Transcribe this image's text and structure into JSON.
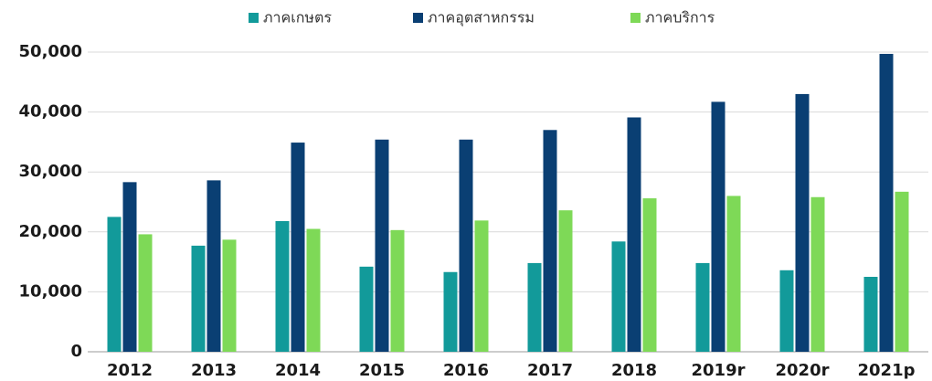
{
  "chart_data": {
    "type": "bar",
    "categories": [
      "2012",
      "2013",
      "2014",
      "2015",
      "2016",
      "2017",
      "2018",
      "2019r",
      "2020r",
      "2021p"
    ],
    "series": [
      {
        "name": "ภาคเกษตร",
        "color": "#129a9a",
        "values": [
          22500,
          17700,
          21800,
          14200,
          13300,
          14800,
          18400,
          14800,
          13600,
          12500
        ]
      },
      {
        "name": "ภาคอุตสาหกรรม",
        "color": "#0a3f73",
        "values": [
          28300,
          28600,
          34900,
          35400,
          35400,
          37000,
          39100,
          41700,
          43000,
          49700
        ]
      },
      {
        "name": "ภาคบริการ",
        "color": "#7ed957",
        "values": [
          19600,
          18700,
          20500,
          20300,
          21900,
          23600,
          25600,
          26000,
          25800,
          26700
        ]
      }
    ],
    "ylim": [
      0,
      50000
    ],
    "yticks": [
      0,
      {
        "value": 10000,
        "label": "10,000"
      },
      {
        "value": 20000,
        "label": "20,000"
      },
      {
        "value": 30000,
        "label": "30,000"
      },
      {
        "value": 40000,
        "label": "40,000"
      },
      {
        "value": 50000,
        "label": "50,000"
      }
    ],
    "grid": true,
    "legend": "top"
  }
}
